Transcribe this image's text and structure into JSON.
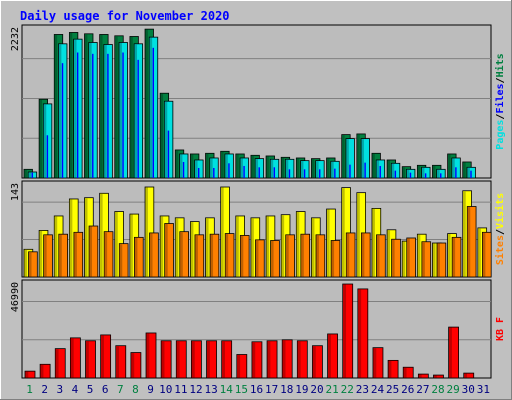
{
  "title": "Daily usage for November 2020",
  "colors": {
    "background": "#c0c0c0",
    "plot_bg": "#bcbcbc",
    "title": "#0000ff",
    "hits": "#008040",
    "files": "#0000ff",
    "pages": "#00e0e0",
    "visits": "#ffff00",
    "sites": "#ff8000",
    "kbytes": "#ff0000",
    "weekend_day": "#008040",
    "weekday": "#000080"
  },
  "chart_data": [
    {
      "type": "bar",
      "title": "Daily usage for November 2020",
      "categories": [
        "1",
        "2",
        "3",
        "4",
        "5",
        "6",
        "7",
        "8",
        "9",
        "10",
        "11",
        "12",
        "13",
        "14",
        "15",
        "16",
        "17",
        "18",
        "19",
        "20",
        "21",
        "22",
        "23",
        "24",
        "25",
        "26",
        "27",
        "28",
        "29",
        "30",
        "31"
      ],
      "weekend_days": [
        "1",
        "7",
        "8",
        "14",
        "15",
        "21",
        "22",
        "28",
        "29"
      ],
      "ylabel_parts": [
        "Pages",
        "Files",
        "Hits"
      ],
      "ylim": [
        0,
        2232
      ],
      "max_label": "2232",
      "series": [
        {
          "name": "Hits",
          "values": [
            130,
            1180,
            2150,
            2180,
            2160,
            2150,
            2130,
            2120,
            2230,
            1270,
            420,
            360,
            370,
            400,
            360,
            340,
            330,
            310,
            300,
            290,
            300,
            650,
            660,
            370,
            270,
            170,
            190,
            190,
            360,
            240,
            0
          ]
        },
        {
          "name": "Files",
          "values": [
            80,
            640,
            1720,
            1880,
            1860,
            1860,
            1880,
            1770,
            1950,
            710,
            240,
            150,
            150,
            220,
            180,
            160,
            160,
            130,
            130,
            130,
            140,
            200,
            230,
            180,
            110,
            80,
            70,
            70,
            160,
            110,
            0
          ]
        },
        {
          "name": "Pages",
          "values": [
            90,
            1110,
            2010,
            2080,
            2030,
            2000,
            2030,
            2010,
            2110,
            1150,
            360,
            270,
            300,
            360,
            300,
            290,
            280,
            280,
            260,
            260,
            250,
            590,
            590,
            270,
            220,
            130,
            160,
            130,
            300,
            160,
            0
          ]
        }
      ]
    },
    {
      "type": "bar",
      "categories": [
        "1",
        "2",
        "3",
        "4",
        "5",
        "6",
        "7",
        "8",
        "9",
        "10",
        "11",
        "12",
        "13",
        "14",
        "15",
        "16",
        "17",
        "18",
        "19",
        "20",
        "21",
        "22",
        "23",
        "24",
        "25",
        "26",
        "27",
        "28",
        "29",
        "30",
        "31"
      ],
      "ylabel_parts": [
        "Sites",
        "Visits"
      ],
      "ylim": [
        0,
        143
      ],
      "max_label": "143",
      "series": [
        {
          "name": "Visits",
          "values": [
            44,
            74,
            97,
            124,
            126,
            133,
            104,
            100,
            143,
            97,
            94,
            88,
            94,
            143,
            97,
            94,
            97,
            99,
            104,
            94,
            108,
            142,
            134,
            109,
            75,
            57,
            68,
            54,
            69,
            137,
            78
          ]
        },
        {
          "name": "Sites",
          "values": [
            40,
            67,
            68,
            71,
            81,
            72,
            53,
            63,
            70,
            85,
            72,
            67,
            68,
            69,
            66,
            59,
            58,
            67,
            68,
            67,
            58,
            70,
            70,
            67,
            60,
            62,
            56,
            54,
            63,
            112,
            71
          ]
        }
      ]
    },
    {
      "type": "bar",
      "categories": [
        "1",
        "2",
        "3",
        "4",
        "5",
        "6",
        "7",
        "8",
        "9",
        "10",
        "11",
        "12",
        "13",
        "14",
        "15",
        "16",
        "17",
        "18",
        "19",
        "20",
        "21",
        "22",
        "23",
        "24",
        "25",
        "26",
        "27",
        "28",
        "29",
        "30",
        "31"
      ],
      "ylabel": "KB F",
      "ylim": [
        0,
        46990
      ],
      "max_label": "46990",
      "series": [
        {
          "name": "KB F",
          "values": [
            3500,
            7000,
            15000,
            20500,
            19000,
            22000,
            16500,
            13000,
            23000,
            19000,
            19000,
            19000,
            19000,
            19000,
            12000,
            18500,
            19000,
            19500,
            19000,
            16500,
            22500,
            48000,
            45500,
            15500,
            9000,
            5500,
            2000,
            1500,
            26000,
            2500,
            0
          ]
        }
      ]
    }
  ]
}
